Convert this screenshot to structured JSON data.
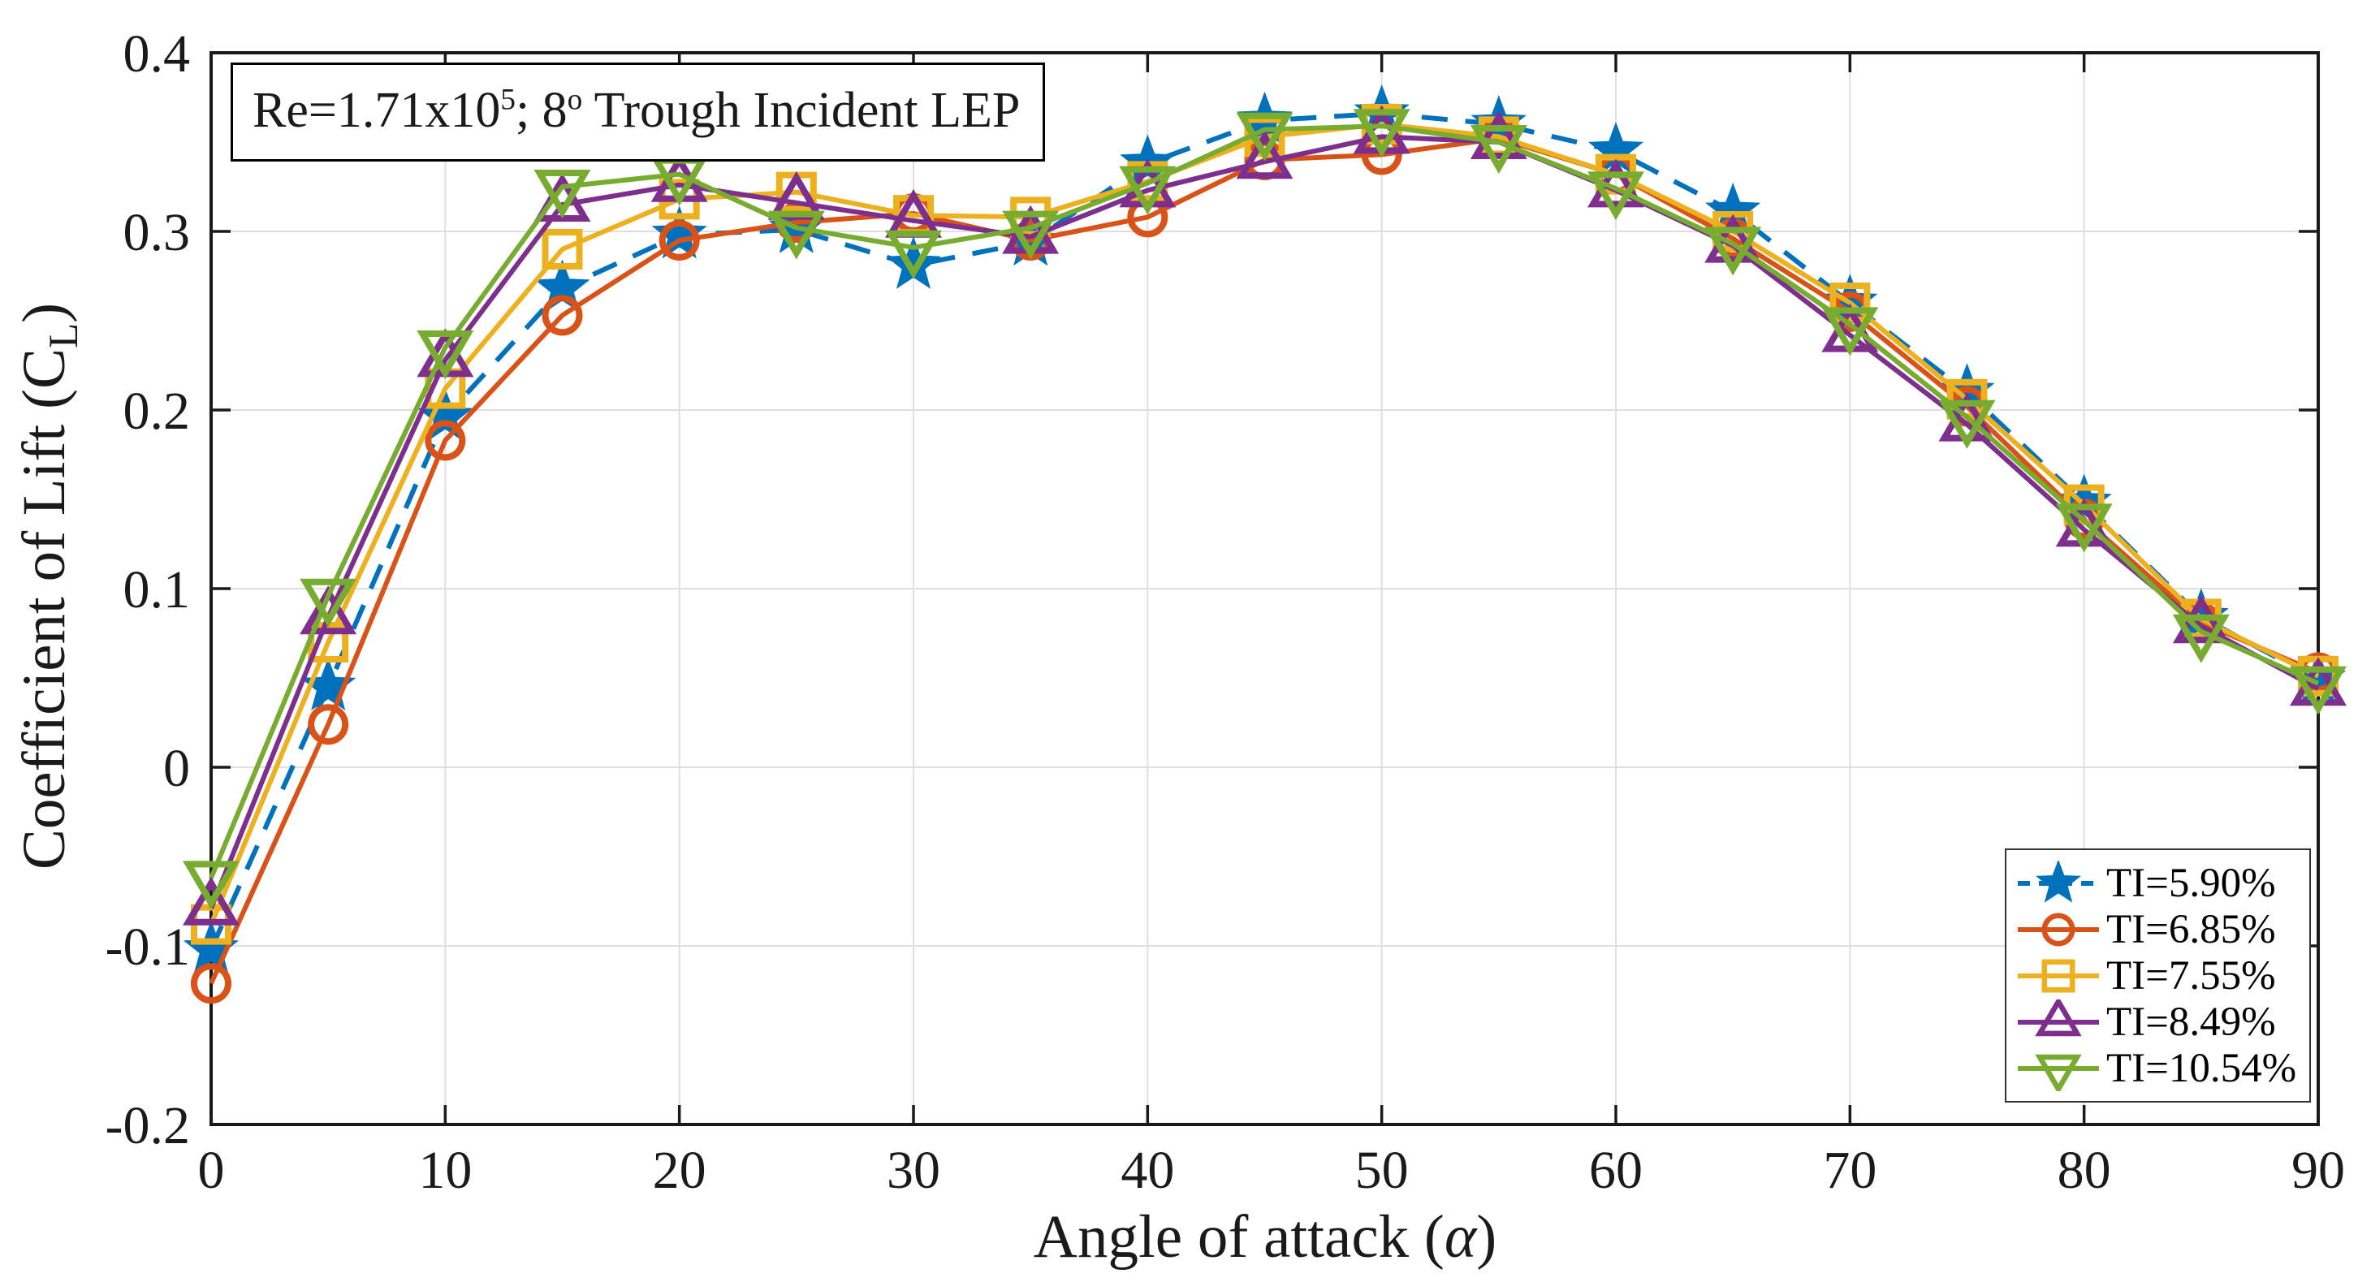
{
  "figure": {
    "annotation": {
      "pre": "Re=1.71x10",
      "sup1": "5",
      "mid": "; 8",
      "sup2": "o",
      "post": " Trough Incident LEP"
    },
    "xlabel": {
      "pre": "Angle of attack (",
      "alpha": "α",
      "post": ")"
    },
    "ylabel": {
      "pre": "Coefficient of Lift (C",
      "sub": "L",
      "post": ")"
    }
  },
  "chart_data": {
    "type": "line",
    "title": "",
    "annotation_text": "Re=1.71x10^5; 8^o Trough Incident LEP",
    "xlabel": "Angle of attack (α)",
    "ylabel": "Coefficient of Lift (C_L)",
    "xlim": [
      0,
      90
    ],
    "ylim": [
      -0.2,
      0.4
    ],
    "grid": true,
    "legend_position": "lower right",
    "xticks": [
      0,
      10,
      20,
      30,
      40,
      50,
      60,
      70,
      80,
      90
    ],
    "xticklabels": [
      "0",
      "10",
      "20",
      "30",
      "40",
      "50",
      "60",
      "70",
      "80",
      "90"
    ],
    "yticks": [
      -0.2,
      -0.1,
      0,
      0.1,
      0.2,
      0.3,
      0.4
    ],
    "yticklabels": [
      "-0.2",
      "-0.1",
      "0",
      "0.1",
      "0.2",
      "0.3",
      "0.4"
    ],
    "x": [
      0,
      5,
      10,
      15,
      20,
      25,
      30,
      35,
      40,
      45,
      50,
      55,
      60,
      65,
      70,
      75,
      80,
      85,
      90
    ],
    "series": [
      {
        "name": "TI=5.90%",
        "color": "#0072BD",
        "marker": "star",
        "marker_fill": "solid",
        "line": "dashed",
        "values": [
          -0.102,
          0.045,
          0.196,
          0.268,
          0.298,
          0.301,
          0.281,
          0.294,
          0.338,
          0.362,
          0.366,
          0.36,
          0.345,
          0.311,
          0.26,
          0.21,
          0.148,
          0.084,
          0.049
        ]
      },
      {
        "name": "TI=6.85%",
        "color": "#D95319",
        "marker": "circle",
        "marker_fill": "open",
        "line": "solid",
        "values": [
          -0.121,
          0.024,
          0.183,
          0.253,
          0.295,
          0.305,
          0.31,
          0.295,
          0.308,
          0.34,
          0.343,
          0.352,
          0.332,
          0.296,
          0.255,
          0.202,
          0.139,
          0.081,
          0.053
        ]
      },
      {
        "name": "TI=7.55%",
        "color": "#EDB120",
        "marker": "square",
        "marker_fill": "open",
        "line": "solid",
        "values": [
          -0.088,
          0.07,
          0.212,
          0.29,
          0.318,
          0.322,
          0.309,
          0.308,
          0.328,
          0.353,
          0.36,
          0.353,
          0.332,
          0.3,
          0.26,
          0.206,
          0.147,
          0.083,
          0.051
        ]
      },
      {
        "name": "TI=8.49%",
        "color": "#7E2F8E",
        "marker": "triangle-up",
        "marker_fill": "open",
        "line": "solid",
        "values": [
          -0.079,
          0.084,
          0.228,
          0.315,
          0.326,
          0.316,
          0.306,
          0.297,
          0.323,
          0.339,
          0.353,
          0.35,
          0.323,
          0.292,
          0.242,
          0.192,
          0.133,
          0.079,
          0.044
        ]
      },
      {
        "name": "TI=10.54%",
        "color": "#77AC30",
        "marker": "triangle-down",
        "marker_fill": "open",
        "line": "solid",
        "values": [
          -0.062,
          0.096,
          0.235,
          0.325,
          0.332,
          0.302,
          0.291,
          0.302,
          0.327,
          0.357,
          0.359,
          0.35,
          0.324,
          0.293,
          0.248,
          0.196,
          0.138,
          0.076,
          0.047
        ]
      }
    ],
    "style": {
      "grid_color": "#E0E0E0",
      "axis_color": "#1a1a1a",
      "background": "#ffffff"
    }
  }
}
